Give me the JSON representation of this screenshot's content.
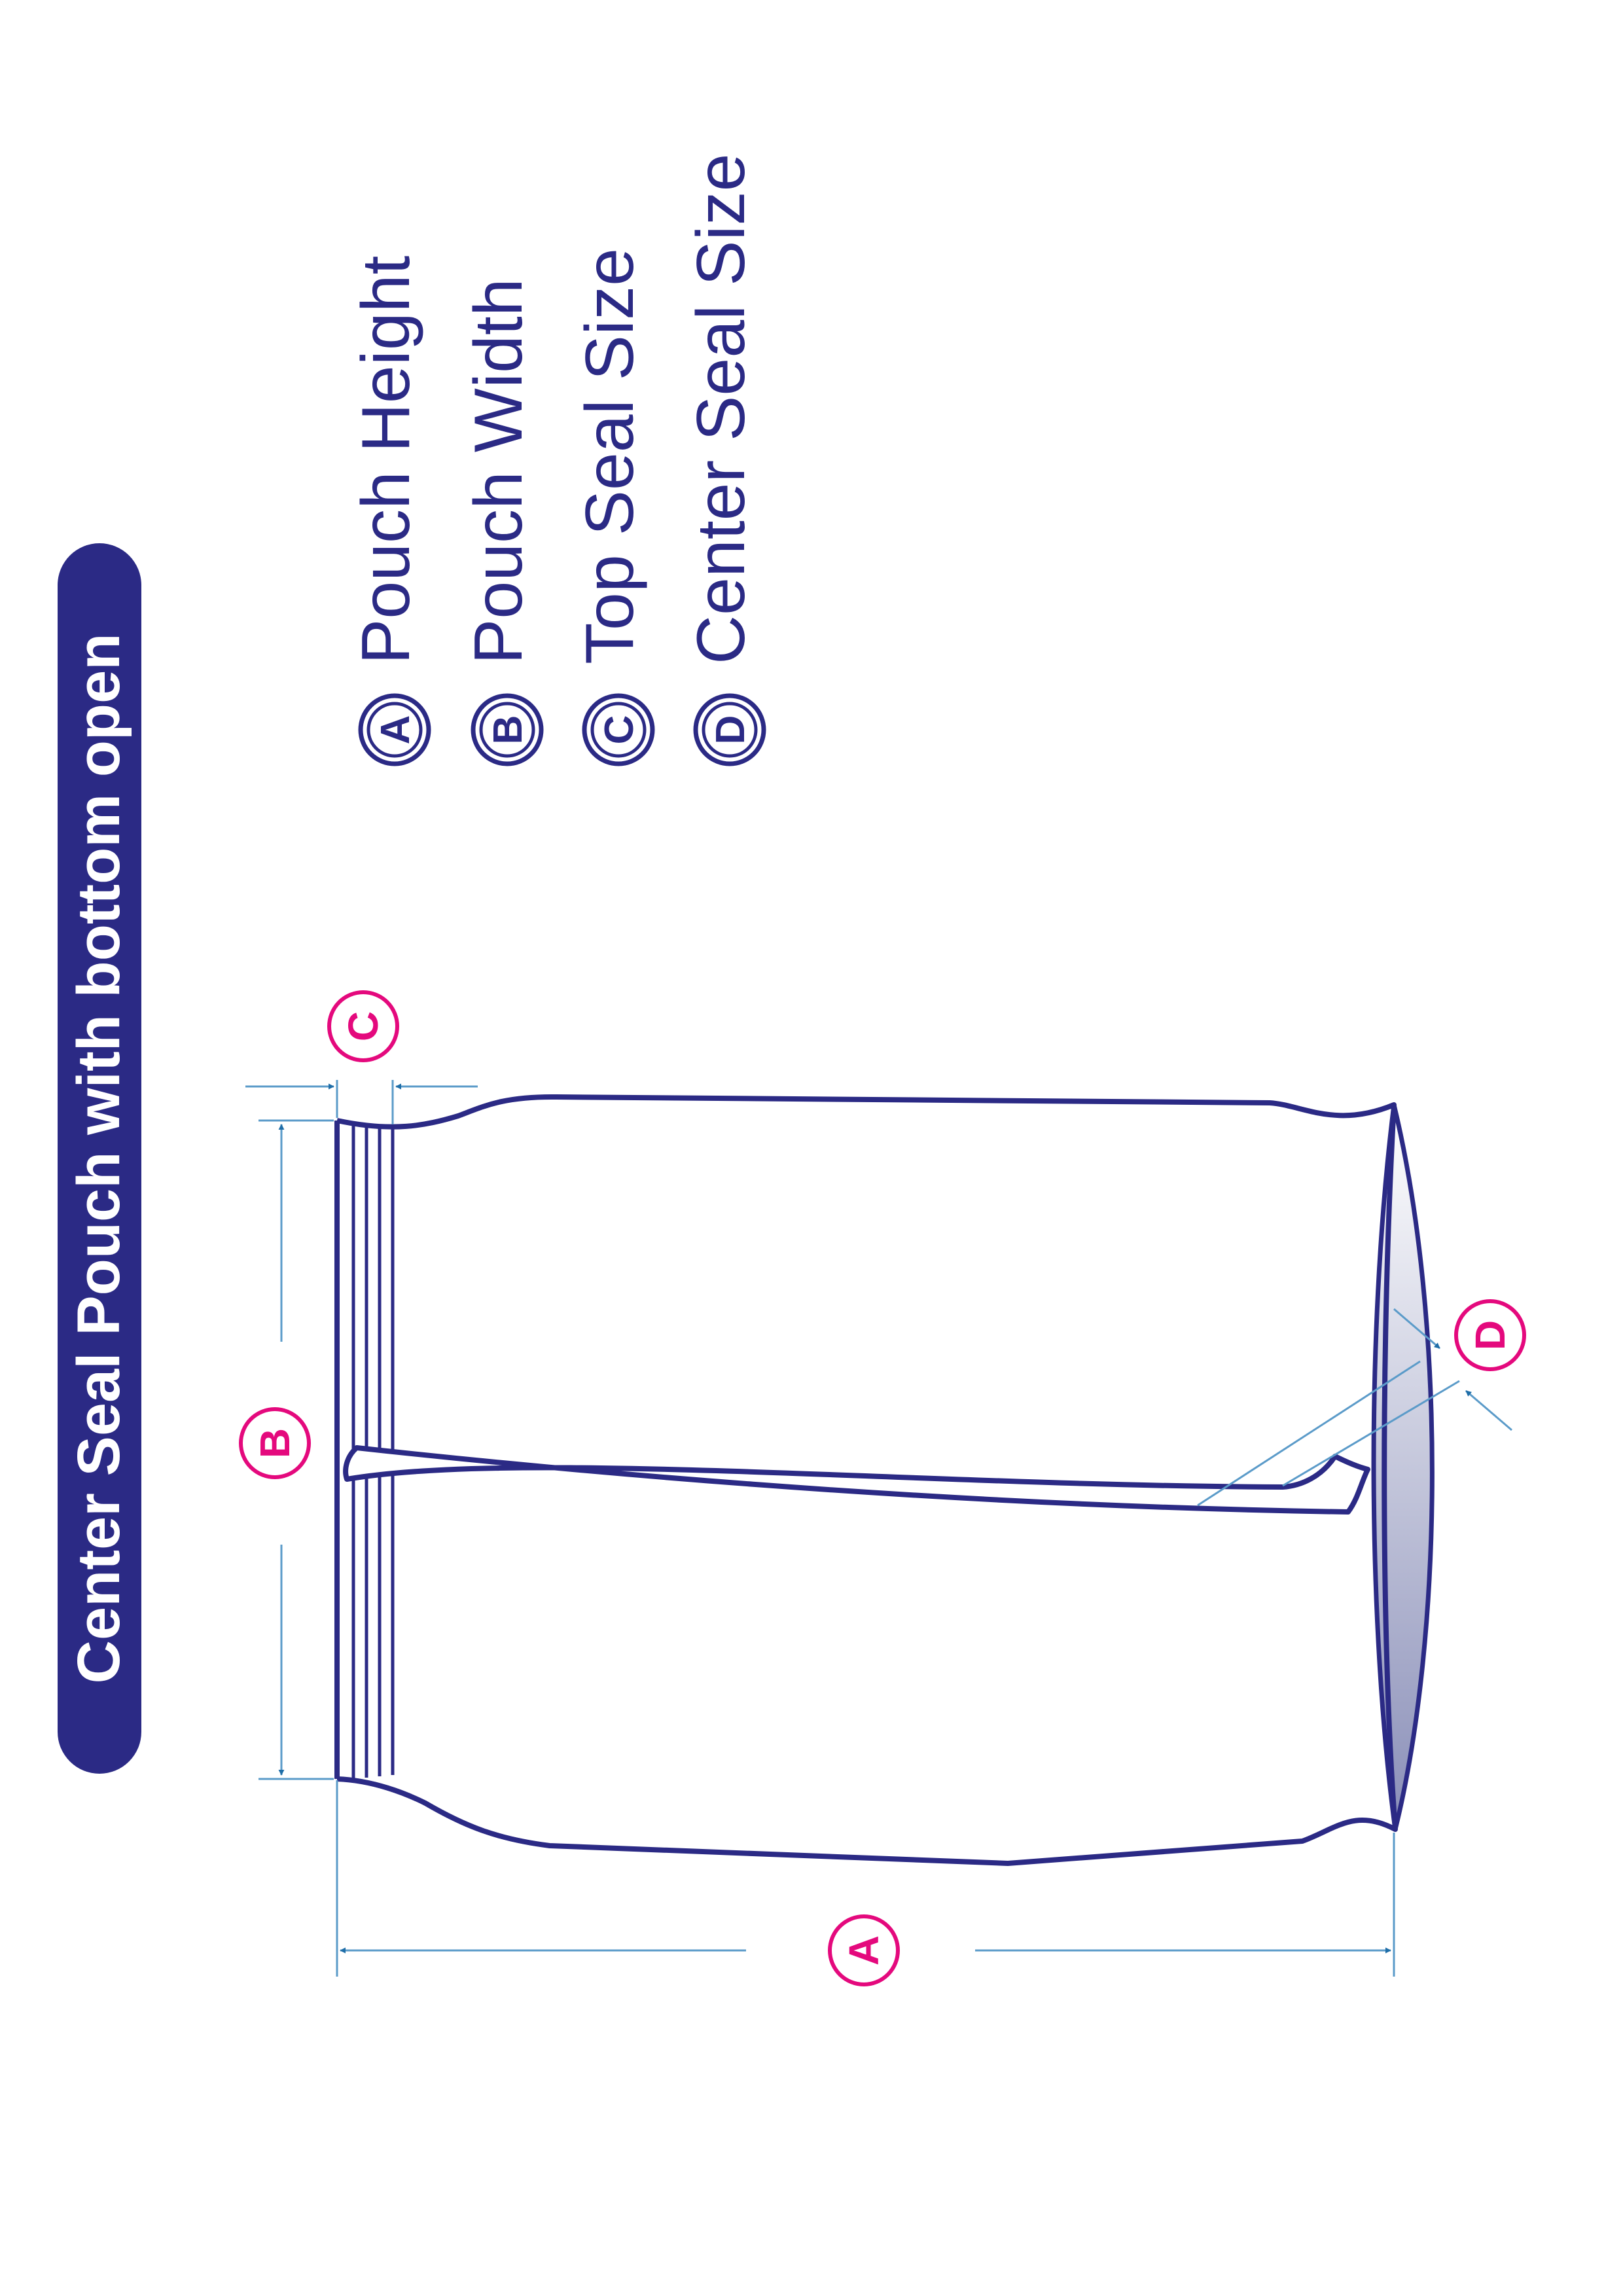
{
  "title": "Center Seal Pouch with bottom open",
  "colors": {
    "brand": "#2b2a85",
    "marker": "#e4097d",
    "dimension_line": "#5b9bc9",
    "arrow": "#1f6ea8"
  },
  "legend": [
    {
      "letter": "A",
      "label": "Pouch Height"
    },
    {
      "letter": "B",
      "label": "Pouch Width"
    },
    {
      "letter": "C",
      "label": "Top Seal Size"
    },
    {
      "letter": "D",
      "label": "Center Seal Size"
    }
  ],
  "markers": {
    "A": "A",
    "B": "B",
    "C": "C",
    "D": "D"
  }
}
